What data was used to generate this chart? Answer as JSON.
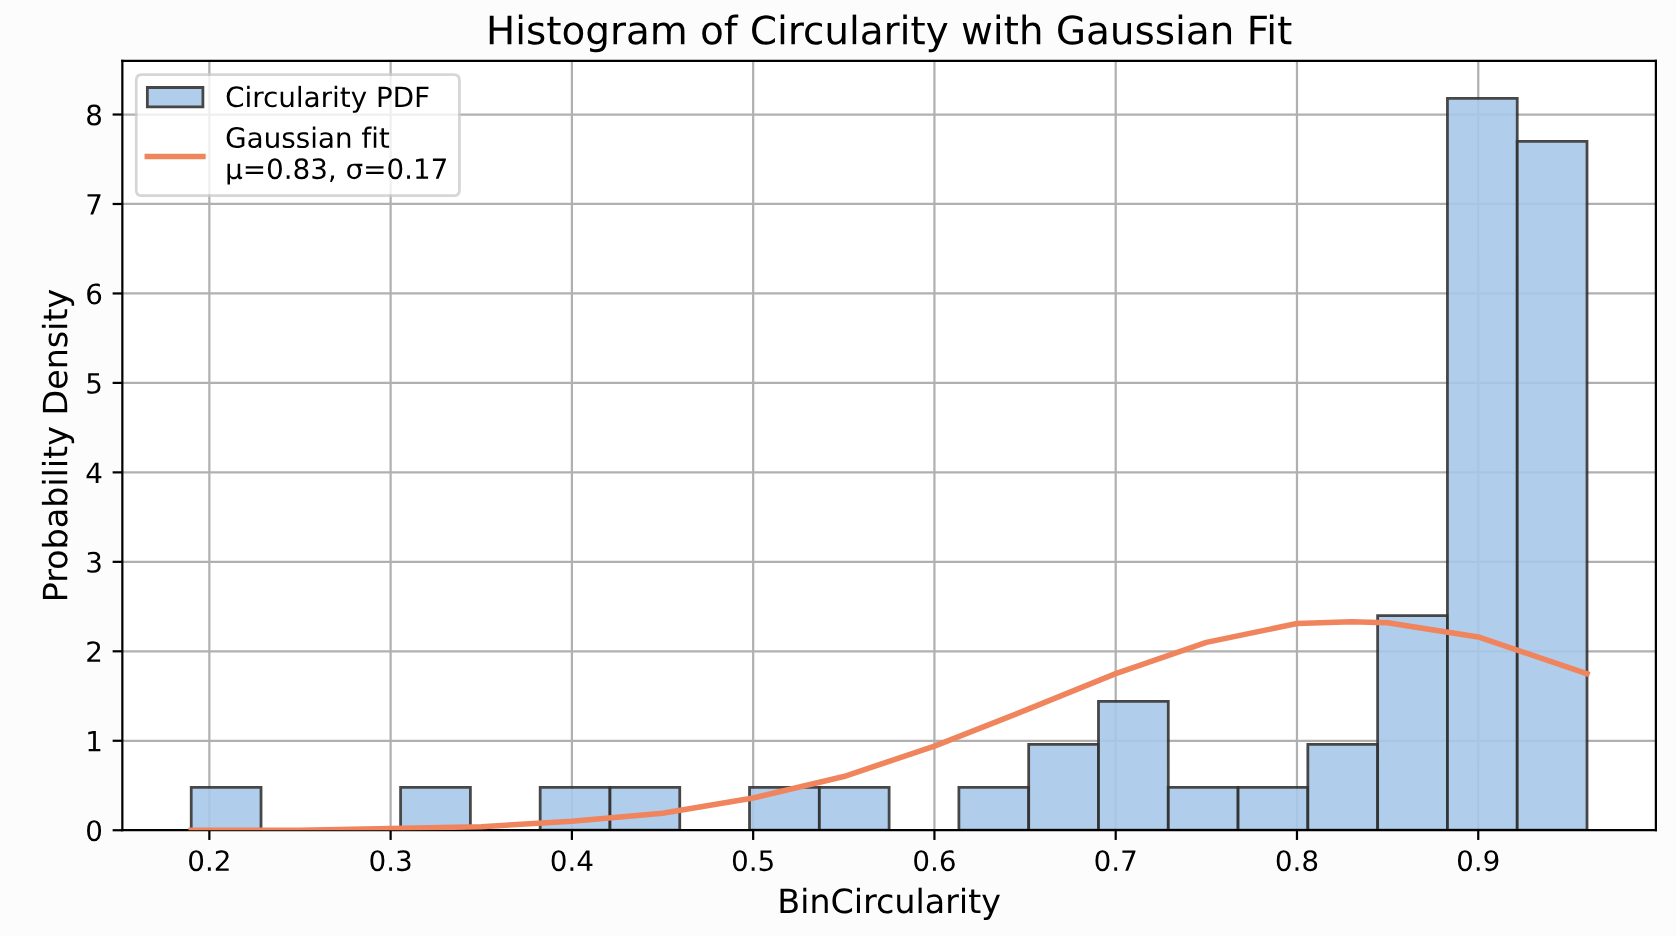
{
  "chart_data": {
    "type": "histogram",
    "title": "Histogram of Circularity with Gaussian Fit",
    "xlabel": "BinCircularity",
    "ylabel": "Probability Density",
    "bins": [
      0.19,
      0.2285,
      0.267,
      0.3055,
      0.344,
      0.3825,
      0.421,
      0.4595,
      0.498,
      0.5365,
      0.575,
      0.6135,
      0.652,
      0.6905,
      0.729,
      0.7675,
      0.806,
      0.8445,
      0.883,
      0.9215,
      0.96
    ],
    "series": [
      {
        "name": "Circularity PDF",
        "color": "#a8c8ea",
        "values": [
          0.48,
          0,
          0,
          0.48,
          0,
          0.48,
          0.48,
          0,
          0.48,
          0.48,
          0,
          0.48,
          0.96,
          1.44,
          0.48,
          0.48,
          0.96,
          2.4,
          8.18,
          7.7
        ]
      },
      {
        "type": "line",
        "name": "Gaussian fit\nμ=0.83, σ=0.17",
        "color": "#f0845c",
        "x": [
          0.19,
          0.25,
          0.3,
          0.35,
          0.4,
          0.45,
          0.5,
          0.55,
          0.6,
          0.65,
          0.7,
          0.75,
          0.8,
          0.83,
          0.85,
          0.9,
          0.96
        ],
        "values": [
          0,
          0,
          0.02,
          0.04,
          0.1,
          0.19,
          0.36,
          0.6,
          0.94,
          1.34,
          1.75,
          2.1,
          2.31,
          2.33,
          2.32,
          2.16,
          1.75
        ]
      }
    ],
    "xlim": [
      0.152,
      0.998
    ],
    "ylim": [
      0,
      8.6
    ],
    "xticks": [
      {
        "value": 0.2,
        "label": "0.2"
      },
      {
        "value": 0.3,
        "label": "0.3"
      },
      {
        "value": 0.4,
        "label": "0.4"
      },
      {
        "value": 0.5,
        "label": "0.5"
      },
      {
        "value": 0.6,
        "label": "0.6"
      },
      {
        "value": 0.7,
        "label": "0.7"
      },
      {
        "value": 0.8,
        "label": "0.8"
      },
      {
        "value": 0.9,
        "label": "0.9"
      }
    ],
    "yticks": [
      0,
      1,
      2,
      3,
      4,
      5,
      6,
      7,
      8
    ],
    "grid": true,
    "legend": "top left"
  }
}
